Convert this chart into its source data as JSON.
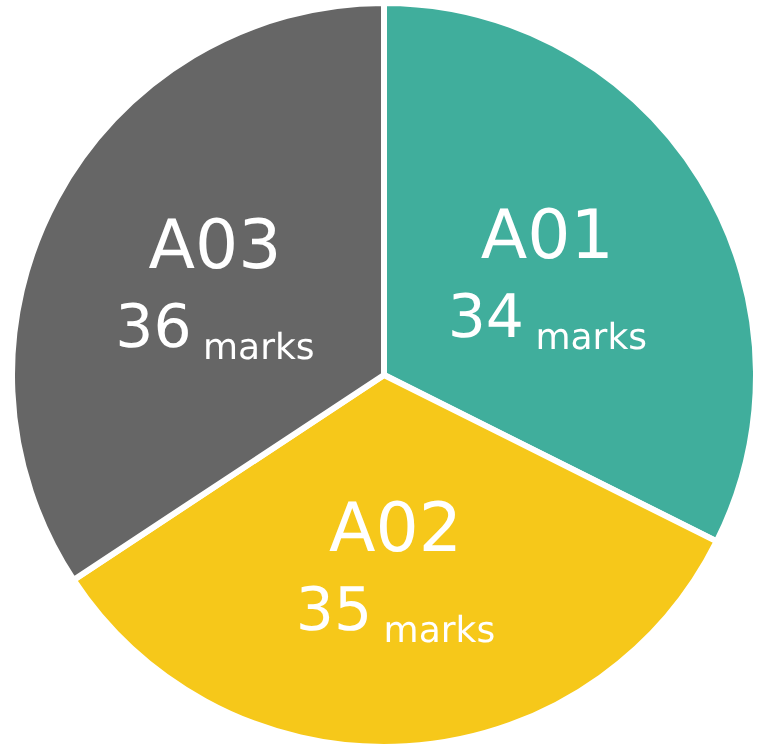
{
  "chart_data": {
    "type": "pie",
    "categories": [
      "A01",
      "A02",
      "A03"
    ],
    "values": [
      34,
      35,
      36
    ],
    "colors": [
      "#40ae9c",
      "#f6c81a",
      "#666666"
    ],
    "value_labels": [
      "34 marks",
      "35 marks",
      "36 marks"
    ],
    "legend": false
  }
}
